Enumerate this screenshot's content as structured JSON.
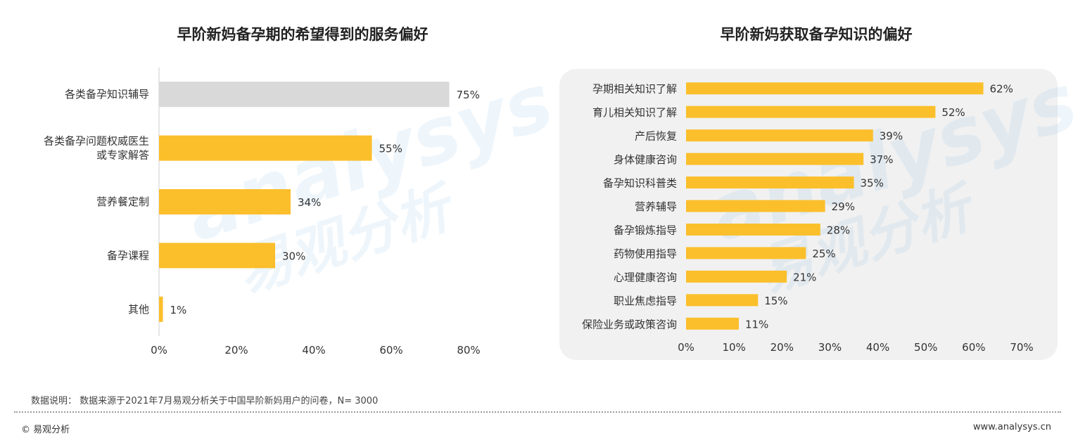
{
  "left_chart": {
    "title": "早阶新妈备孕期的希望得到的服务偏好"
  },
  "right_chart": {
    "title": "早阶新妈获取备孕知识的偏好"
  },
  "colors": {
    "bar": "#fbbf2b",
    "highlight_bar": "#d9d9d9",
    "panel": "#f1f1f1",
    "axis": "#cccccc",
    "text": "#333333"
  },
  "footer": {
    "note": "数据说明：  数据来源于2021年7月易观分析关于中国早阶新妈用户的问卷，N= 3000",
    "copyright": "© 易观分析",
    "site": "www.analysys.cn"
  },
  "watermark": {
    "brand": "analysys",
    "cn": "易观分析"
  },
  "chart_data": [
    {
      "type": "bar",
      "orientation": "horizontal",
      "title": "早阶新妈备孕期的希望得到的服务偏好",
      "categories": [
        [
          "各类备孕知识辅导"
        ],
        [
          "各类备孕问题权威医生",
          "或专家解答"
        ],
        [
          "营养餐定制"
        ],
        [
          "备孕课程"
        ],
        [
          "其他"
        ]
      ],
      "values": [
        75,
        55,
        34,
        30,
        1
      ],
      "value_labels": [
        "75%",
        "55%",
        "34%",
        "30%",
        "1%"
      ],
      "highlight_index": 0,
      "xlim": [
        0,
        80
      ],
      "xticks": [
        "0%",
        "20%",
        "40%",
        "60%",
        "80%"
      ],
      "grid": false
    },
    {
      "type": "bar",
      "orientation": "horizontal",
      "title": "早阶新妈获取备孕知识的偏好",
      "categories": [
        "孕期相关知识了解",
        "育儿相关知识了解",
        "产后恢复",
        "身体健康咨询",
        "备孕知识科普类",
        "营养辅导",
        "备孕锻炼指导",
        "药物使用指导",
        "心理健康咨询",
        "职业焦虑指导",
        "保险业务或政策咨询"
      ],
      "values": [
        62,
        52,
        39,
        37,
        35,
        29,
        28,
        25,
        21,
        15,
        11
      ],
      "value_labels": [
        "62%",
        "52%",
        "39%",
        "37%",
        "35%",
        "29%",
        "28%",
        "25%",
        "21%",
        "15%",
        "11%"
      ],
      "xlim": [
        0,
        70
      ],
      "xticks": [
        "0%",
        "10%",
        "20%",
        "30%",
        "40%",
        "50%",
        "60%",
        "70%"
      ],
      "grid": false
    }
  ]
}
